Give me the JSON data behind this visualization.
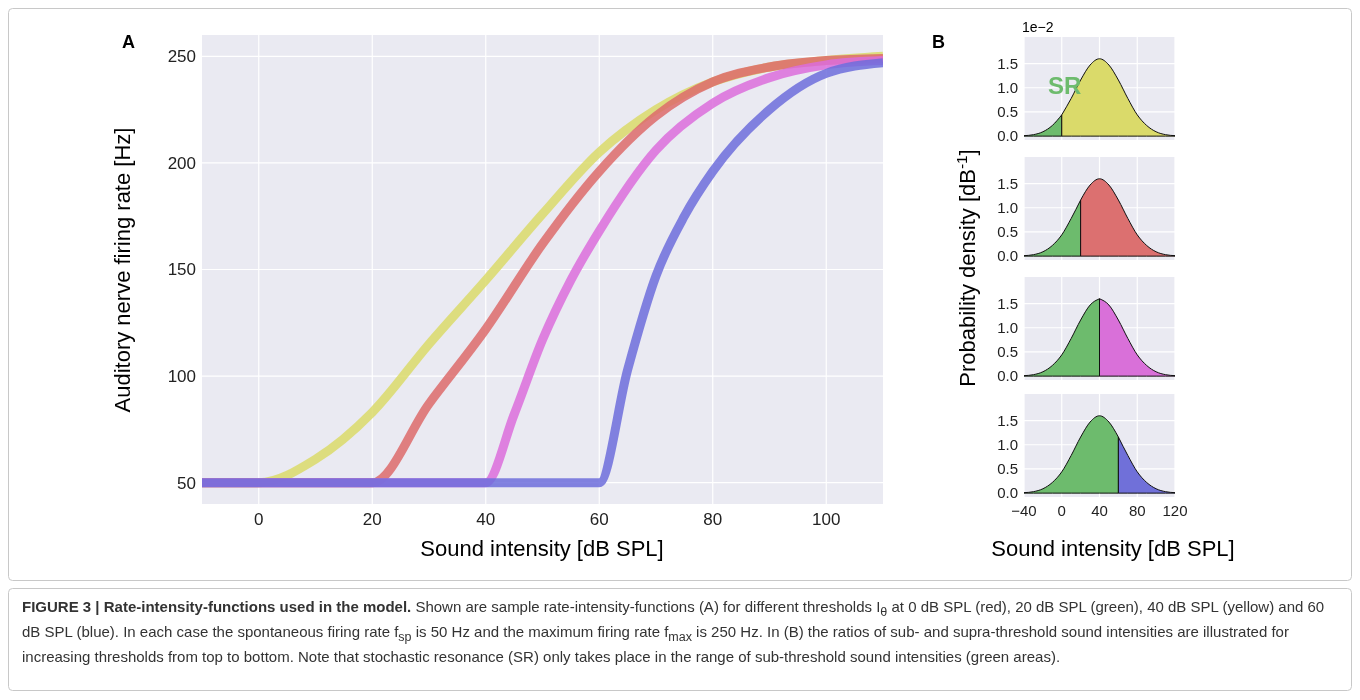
{
  "chart_data": [
    {
      "type": "line",
      "xlabel": "Sound intensity [dB SPL]",
      "ylabel": "Auditory nerve firing rate [Hz]",
      "xlim": [
        -10,
        110
      ],
      "xticks": [
        0,
        20,
        40,
        60,
        80,
        100
      ],
      "ylim": [
        40,
        260
      ],
      "yticks": [
        50,
        100,
        150,
        200,
        250
      ],
      "grid": true,
      "series": [
        {
          "color": "#dada6a",
          "x": [
            -10,
            0,
            10,
            20,
            30,
            40,
            50,
            60,
            70,
            80,
            90,
            100,
            110
          ],
          "values": [
            50,
            50,
            61,
            83,
            115,
            145,
            176,
            205,
            225,
            238,
            245,
            248,
            250
          ]
        },
        {
          "color": "#dd6b6b",
          "x": [
            -10,
            20,
            30,
            40,
            50,
            60,
            70,
            80,
            90,
            100,
            110
          ],
          "values": [
            50,
            50,
            87,
            122,
            162,
            196,
            222,
            238,
            245,
            248,
            249
          ]
        },
        {
          "color": "#dc6ddc",
          "x": [
            -10,
            40,
            45,
            50,
            55,
            60,
            70,
            80,
            90,
            100,
            110
          ],
          "values": [
            50,
            50,
            82,
            117,
            145,
            168,
            206,
            228,
            240,
            246,
            248
          ]
        },
        {
          "color": "#6d6ddc",
          "x": [
            -10,
            60,
            65,
            70,
            75,
            80,
            90,
            100,
            110
          ],
          "values": [
            50,
            50,
            103,
            147,
            175,
            196,
            225,
            242,
            247
          ]
        }
      ],
      "annotations": [
        "A",
        "FIGURE 3 | Rate-intensity-functions used in the model.",
        "Shown are sample rate-intensity-functions (A) for different thresholds I$_{θ}$ at 0 dB SPL (red), 20 dB SPL (green), 40 dB SPL (yellow) and 60 dB SPL (blue). In each case the spontaneous firing rate f$_{sp}$ is 50 Hz and the maximum firing rate f$_{max}$ is 250 Hz. In (B) the ratios of sub- and supra-threshold sound intensities are illustrated for increasing thresholds from top to bottom. Note that stochastic resonance (SR) only takes place in the range of sub-threshold sound intensities (green areas)."
      ]
    },
    {
      "type": "area",
      "ylabel": "Probability density [dB$^{-1}$]",
      "xlim": [
        -40,
        120
      ],
      "xticks": [
        -40,
        0,
        40,
        80,
        120
      ],
      "ylim": [
        -0.08,
        2.05
      ],
      "yticks": [
        {
          "value": 0,
          "label": "0.0"
        },
        {
          "value": 0.5,
          "label": "0.5"
        },
        {
          "value": 1,
          "label": "1.0"
        },
        {
          "value": 1.5,
          "label": "1.5"
        }
      ],
      "grid": true,
      "tick_labels": "y",
      "series": [
        {
          "color": "#6dbb6d",
          "x": [
            -40,
            -30,
            -20,
            -10,
            0
          ],
          "values": [
            0.01,
            0.03,
            0.09,
            0.22,
            0.44
          ]
        },
        {
          "color": "#dada6a",
          "x": [
            0,
            10,
            20,
            30,
            40,
            50,
            60,
            70,
            80,
            90,
            100,
            110,
            120
          ],
          "values": [
            0.44,
            0.78,
            1.16,
            1.47,
            1.6,
            1.47,
            1.16,
            0.78,
            0.44,
            0.22,
            0.09,
            0.03,
            0.01
          ]
        }
      ],
      "annotations": [
        "B",
        "1e−2",
        "SR"
      ]
    },
    {
      "type": "area",
      "xlim": [
        -40,
        120
      ],
      "xticks": [
        -40,
        0,
        40,
        80,
        120
      ],
      "ylim": [
        -0.08,
        2.05
      ],
      "yticks": [
        {
          "value": 0,
          "label": "0.0"
        },
        {
          "value": 0.5,
          "label": "0.5"
        },
        {
          "value": 1,
          "label": "1.0"
        },
        {
          "value": 1.5,
          "label": "1.5"
        }
      ],
      "grid": true,
      "tick_labels": "y",
      "series": [
        {
          "color": "#6dbb6d",
          "x": [
            -40,
            -30,
            -20,
            -10,
            0,
            10,
            20
          ],
          "values": [
            0.01,
            0.03,
            0.09,
            0.22,
            0.44,
            0.78,
            1.16
          ]
        },
        {
          "color": "#dc7070",
          "x": [
            20,
            30,
            40,
            50,
            60,
            70,
            80,
            90,
            100,
            110,
            120
          ],
          "values": [
            1.16,
            1.47,
            1.6,
            1.47,
            1.16,
            0.78,
            0.44,
            0.22,
            0.09,
            0.03,
            0.01
          ]
        }
      ]
    },
    {
      "type": "area",
      "xlim": [
        -40,
        120
      ],
      "xticks": [
        -40,
        0,
        40,
        80,
        120
      ],
      "ylim": [
        -0.08,
        2.05
      ],
      "yticks": [
        {
          "value": 0,
          "label": "0.0"
        },
        {
          "value": 0.5,
          "label": "0.5"
        },
        {
          "value": 1,
          "label": "1.0"
        },
        {
          "value": 1.5,
          "label": "1.5"
        }
      ],
      "grid": true,
      "tick_labels": "y",
      "series": [
        {
          "color": "#6dbb6d",
          "x": [
            -40,
            -30,
            -20,
            -10,
            0,
            10,
            20,
            30,
            40
          ],
          "values": [
            0.01,
            0.03,
            0.09,
            0.22,
            0.44,
            0.78,
            1.16,
            1.47,
            1.6
          ]
        },
        {
          "color": "#d970d9",
          "x": [
            40,
            50,
            60,
            70,
            80,
            90,
            100,
            110,
            120
          ],
          "values": [
            1.6,
            1.47,
            1.16,
            0.78,
            0.44,
            0.22,
            0.09,
            0.03,
            0.01
          ]
        }
      ]
    },
    {
      "type": "area",
      "xlabel": "Sound intensity [dB SPL]",
      "xlim": [
        -40,
        120
      ],
      "xticks": [
        {
          "value": -40,
          "label": "−40"
        },
        0,
        40,
        80,
        120
      ],
      "ylim": [
        -0.08,
        2.05
      ],
      "yticks": [
        {
          "value": 0,
          "label": "0.0"
        },
        {
          "value": 0.5,
          "label": "0.5"
        },
        {
          "value": 1,
          "label": "1.0"
        },
        {
          "value": 1.5,
          "label": "1.5"
        }
      ],
      "grid": true,
      "series": [
        {
          "color": "#6dbb6d",
          "x": [
            -40,
            -30,
            -20,
            -10,
            0,
            10,
            20,
            30,
            40,
            50,
            60
          ],
          "values": [
            0.01,
            0.03,
            0.09,
            0.22,
            0.44,
            0.78,
            1.16,
            1.47,
            1.6,
            1.47,
            1.16
          ]
        },
        {
          "color": "#7070d9",
          "x": [
            60,
            70,
            80,
            90,
            100,
            110,
            120
          ],
          "values": [
            1.16,
            0.78,
            0.44,
            0.22,
            0.09,
            0.03,
            0.01
          ]
        }
      ]
    }
  ]
}
